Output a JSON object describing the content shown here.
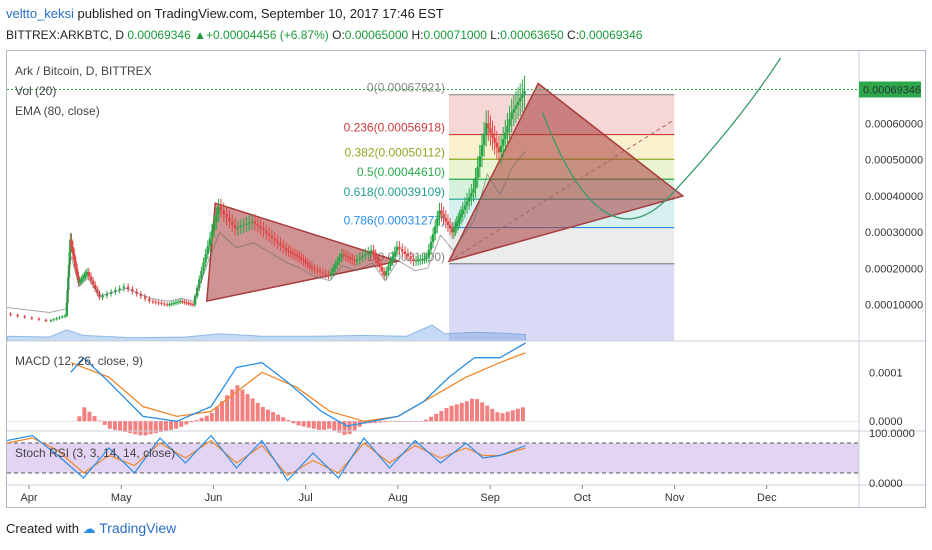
{
  "header": {
    "user": "veltto_keksi",
    "published": "published on TradingView.com, September 10, 2017 17:46 EST",
    "symbol": "BITTREX:ARKBTC, D",
    "last": "0.00069346",
    "change": "+0.00004456 (+6.87%)",
    "o_label": "O:",
    "o_value": "0.00065000",
    "h_label": "H:",
    "h_value": "0.00071000",
    "l_label": "L:",
    "l_value": "0.00063650",
    "c_label": "C:",
    "c_value": "0.00069346"
  },
  "legend": {
    "title": "Ark / Bitcoin, D, BITTREX",
    "vol": "Vol (20)",
    "ema": "EMA (80, close)",
    "macd": "MACD (12, 26, close, 9)",
    "stoch": "Stoch RSI (3, 3, 14, 14, close)"
  },
  "footer": {
    "created_with": "Created with",
    "brand": "TradingView"
  },
  "colors": {
    "up": "#26a644",
    "down": "#e04848",
    "triangle": "#a83a3a",
    "macd": "#2a8ee6",
    "signal": "#f0872a",
    "hist": "#f06060",
    "stoch_k": "#2a8ee6",
    "stoch_d": "#f0872a",
    "stoch_band": "#d9c2f0",
    "price_tag": "#2aa84a",
    "curve": "#3a9a6a"
  },
  "chart_data": {
    "type": "candlestick",
    "x_labels": [
      "Apr",
      "May",
      "Jun",
      "Jul",
      "Aug",
      "Sep",
      "Oct",
      "Nov",
      "Dec"
    ],
    "y_labels": [
      "0.00060000",
      "0.00050000",
      "0.00040000",
      "0.00030000",
      "0.00020000",
      "0.00010000"
    ],
    "y_range": [
      0.0,
      0.00075
    ],
    "last_price_label": "0.00069346",
    "fib_levels": [
      {
        "label": "0(0.00067921)",
        "value": 0.00067921,
        "color": "#888888"
      },
      {
        "label": "0.236(0.00056918)",
        "value": 0.00056918,
        "color": "#d03a3a"
      },
      {
        "label": "0.382(0.00050112)",
        "value": 0.00050112,
        "color": "#8aaa20"
      },
      {
        "label": "0.5(0.00044610)",
        "value": 0.0004461,
        "color": "#2aa84a"
      },
      {
        "label": "0.618(0.00039109)",
        "value": 0.00039109,
        "color": "#20a090"
      },
      {
        "label": "0.786(0.00031277)",
        "value": 0.00031277,
        "color": "#2a8ee6"
      },
      {
        "label": "1(0.00021300)",
        "value": 0.000213,
        "color": "#888888"
      }
    ],
    "macd_labels": [
      "0.0001",
      "0.0000"
    ],
    "macd_range": [
      -2e-05,
      0.00016
    ],
    "stoch_labels": [
      "100.0000",
      "0.0000"
    ],
    "stoch_range": [
      0,
      100
    ],
    "stoch_band": [
      20,
      80
    ],
    "price_path": [
      [
        0.0,
        7.5e-05
      ],
      [
        0.05,
        5.5e-05
      ],
      [
        0.07,
        7e-05
      ],
      [
        0.075,
        0.00028
      ],
      [
        0.085,
        0.00016
      ],
      [
        0.095,
        0.00019
      ],
      [
        0.11,
        0.00012
      ],
      [
        0.14,
        0.00015
      ],
      [
        0.17,
        0.00011
      ],
      [
        0.19,
        0.0001
      ],
      [
        0.205,
        0.00011
      ],
      [
        0.22,
        0.0001
      ],
      [
        0.235,
        0.00024
      ],
      [
        0.25,
        0.00037
      ],
      [
        0.27,
        0.00031
      ],
      [
        0.29,
        0.00033
      ],
      [
        0.31,
        0.00029
      ],
      [
        0.33,
        0.00025
      ],
      [
        0.345,
        0.00023
      ],
      [
        0.36,
        0.0002
      ],
      [
        0.38,
        0.00018
      ],
      [
        0.395,
        0.00024
      ],
      [
        0.41,
        0.00022
      ],
      [
        0.43,
        0.00025
      ],
      [
        0.445,
        0.00018
      ],
      [
        0.46,
        0.00026
      ],
      [
        0.48,
        0.00022
      ],
      [
        0.495,
        0.00023
      ],
      [
        0.51,
        0.00036
      ],
      [
        0.525,
        0.0003
      ],
      [
        0.535,
        0.00035
      ],
      [
        0.55,
        0.00042
      ],
      [
        0.565,
        0.0006
      ],
      [
        0.58,
        0.00052
      ],
      [
        0.595,
        0.00063
      ],
      [
        0.61,
        0.00069
      ]
    ],
    "volume_path": [
      [
        0.0,
        0.3
      ],
      [
        0.05,
        0.25
      ],
      [
        0.07,
        0.7
      ],
      [
        0.09,
        0.35
      ],
      [
        0.15,
        0.2
      ],
      [
        0.21,
        0.25
      ],
      [
        0.25,
        0.45
      ],
      [
        0.3,
        0.3
      ],
      [
        0.36,
        0.3
      ],
      [
        0.42,
        0.35
      ],
      [
        0.47,
        0.3
      ],
      [
        0.5,
        1.0
      ],
      [
        0.515,
        0.45
      ],
      [
        0.55,
        0.55
      ],
      [
        0.58,
        0.5
      ],
      [
        0.61,
        0.4
      ]
    ],
    "macd_line": [
      [
        0.075,
        0.0001
      ],
      [
        0.09,
        0.00013
      ],
      [
        0.12,
        8e-05
      ],
      [
        0.16,
        1e-05
      ],
      [
        0.2,
        0.0
      ],
      [
        0.24,
        3e-05
      ],
      [
        0.27,
        0.00011
      ],
      [
        0.3,
        0.00012
      ],
      [
        0.33,
        8e-05
      ],
      [
        0.37,
        2e-05
      ],
      [
        0.4,
        -1e-05
      ],
      [
        0.43,
        0.0
      ],
      [
        0.46,
        1e-05
      ],
      [
        0.49,
        4e-05
      ],
      [
        0.52,
        9e-05
      ],
      [
        0.55,
        0.00013
      ],
      [
        0.58,
        0.00013
      ],
      [
        0.61,
        0.00016
      ]
    ],
    "signal_line": [
      [
        0.075,
        0.00012
      ],
      [
        0.12,
        9e-05
      ],
      [
        0.16,
        3e-05
      ],
      [
        0.2,
        1e-05
      ],
      [
        0.24,
        2e-05
      ],
      [
        0.27,
        6e-05
      ],
      [
        0.3,
        0.0001
      ],
      [
        0.34,
        7e-05
      ],
      [
        0.38,
        2e-05
      ],
      [
        0.42,
        0.0
      ],
      [
        0.46,
        1e-05
      ],
      [
        0.5,
        5e-05
      ],
      [
        0.54,
        9e-05
      ],
      [
        0.58,
        0.00012
      ],
      [
        0.61,
        0.00014
      ]
    ],
    "stoch_k": [
      [
        0.0,
        85
      ],
      [
        0.03,
        95
      ],
      [
        0.06,
        55
      ],
      [
        0.09,
        10
      ],
      [
        0.12,
        70
      ],
      [
        0.15,
        20
      ],
      [
        0.18,
        90
      ],
      [
        0.21,
        40
      ],
      [
        0.24,
        95
      ],
      [
        0.27,
        30
      ],
      [
        0.3,
        85
      ],
      [
        0.33,
        5
      ],
      [
        0.36,
        60
      ],
      [
        0.39,
        10
      ],
      [
        0.42,
        90
      ],
      [
        0.45,
        30
      ],
      [
        0.48,
        85
      ],
      [
        0.51,
        40
      ],
      [
        0.54,
        80
      ],
      [
        0.56,
        50
      ],
      [
        0.58,
        55
      ],
      [
        0.61,
        75
      ]
    ],
    "stoch_d": [
      [
        0.0,
        80
      ],
      [
        0.03,
        90
      ],
      [
        0.06,
        65
      ],
      [
        0.09,
        20
      ],
      [
        0.12,
        55
      ],
      [
        0.15,
        35
      ],
      [
        0.18,
        80
      ],
      [
        0.21,
        50
      ],
      [
        0.24,
        85
      ],
      [
        0.27,
        40
      ],
      [
        0.3,
        75
      ],
      [
        0.33,
        15
      ],
      [
        0.36,
        45
      ],
      [
        0.39,
        20
      ],
      [
        0.42,
        80
      ],
      [
        0.45,
        40
      ],
      [
        0.48,
        75
      ],
      [
        0.51,
        50
      ],
      [
        0.54,
        70
      ],
      [
        0.56,
        55
      ],
      [
        0.58,
        55
      ],
      [
        0.61,
        70
      ]
    ]
  }
}
